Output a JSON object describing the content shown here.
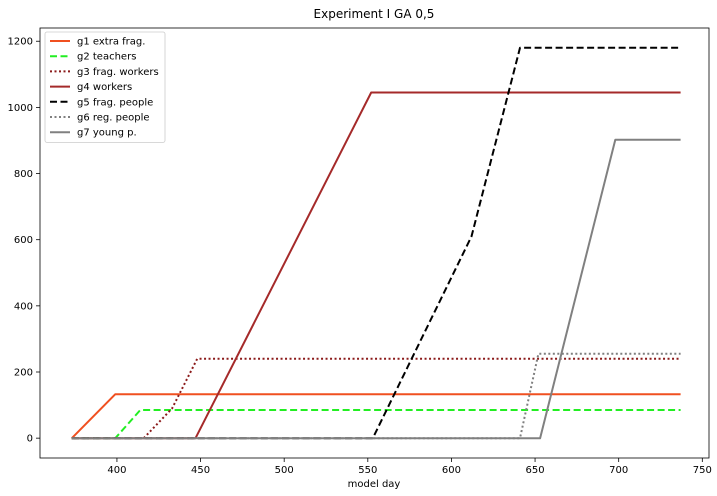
{
  "chart_data": {
    "type": "line",
    "title": "Experiment I GA 0,5",
    "xlabel": "model day",
    "ylabel": "",
    "xlim": [
      354,
      754
    ],
    "ylim": [
      -60,
      1240
    ],
    "xticks": [
      400,
      450,
      500,
      550,
      600,
      650,
      700,
      750
    ],
    "yticks": [
      0,
      200,
      400,
      600,
      800,
      1000,
      1200
    ],
    "grid": false,
    "legend_position": "top-left",
    "series": [
      {
        "name": "g1 extra frag.",
        "color": "#f05020",
        "dash": "solid",
        "x": [
          373,
          399,
          737
        ],
        "y": [
          0,
          133,
          133
        ]
      },
      {
        "name": "g2 teachers",
        "color": "#22ee22",
        "dash": "dashed",
        "x": [
          373,
          399,
          414,
          737
        ],
        "y": [
          0,
          0,
          85,
          85
        ]
      },
      {
        "name": "g3 frag. workers",
        "color": "#8b1a1a",
        "dash": "dotted",
        "x": [
          373,
          416,
          433,
          448,
          737
        ],
        "y": [
          0,
          0,
          90,
          240,
          240
        ]
      },
      {
        "name": "g4 workers",
        "color": "#a52a2a",
        "dash": "solid",
        "x": [
          373,
          447,
          552,
          737
        ],
        "y": [
          0,
          0,
          1045,
          1045
        ]
      },
      {
        "name": "g5 frag. people",
        "color": "#000000",
        "dash": "dashed",
        "x": [
          373,
          553,
          612,
          641,
          737
        ],
        "y": [
          0,
          0,
          610,
          1180,
          1180
        ]
      },
      {
        "name": "g6 reg. people",
        "color": "#7f7f7f",
        "dash": "dotted",
        "x": [
          373,
          641,
          652,
          737
        ],
        "y": [
          0,
          0,
          255,
          255
        ]
      },
      {
        "name": "g7 young p.",
        "color": "#808080",
        "dash": "solid",
        "x": [
          373,
          653,
          698,
          737
        ],
        "y": [
          0,
          0,
          902,
          902
        ]
      }
    ]
  }
}
